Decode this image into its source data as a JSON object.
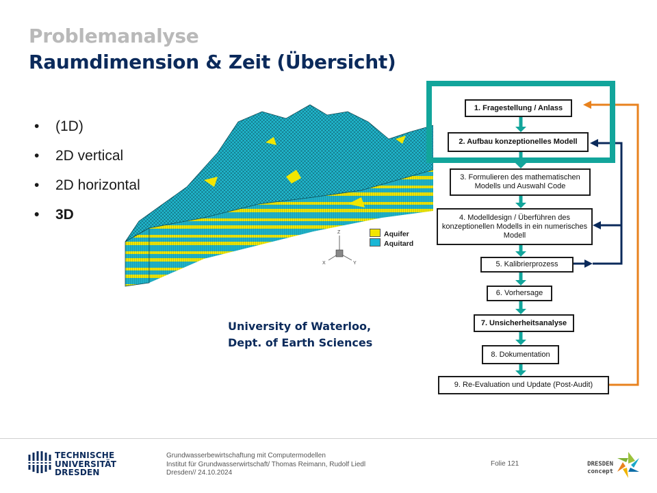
{
  "slide": {
    "section_title": "Problemanalyse",
    "title": "Raumdimension & Zeit (Übersicht)"
  },
  "bullets": [
    {
      "text": "(1D)",
      "bold": false
    },
    {
      "text": "2D vertical",
      "bold": false
    },
    {
      "text": "2D horizontal",
      "bold": false
    },
    {
      "text": "3D",
      "bold": true
    }
  ],
  "model_figure": {
    "legend": [
      {
        "label": "Aquifer",
        "color": "#f2e600"
      },
      {
        "label": "Aquitard",
        "color": "#19b7d6"
      }
    ],
    "axes": {
      "z": "Z",
      "x": "X",
      "y": "Y"
    },
    "credit_line1": "University of Waterloo,",
    "credit_line2": "Dept. of Earth Sciences"
  },
  "flowchart": {
    "steps": [
      {
        "text": "1. Fragestellung / Anlass",
        "bold": true
      },
      {
        "text": "2. Aufbau konzeptionelles Modell",
        "bold": true
      },
      {
        "text": "3. Formulieren des mathematischen Modells und Auswahl Code",
        "bold": false
      },
      {
        "text": "4. Modelldesign / Überführen des konzeptionellen Modells in ein numerisches Modell",
        "bold": false
      },
      {
        "text": "5. Kalibrierprozess",
        "bold": false
      },
      {
        "text": "6. Vorhersage",
        "bold": false
      },
      {
        "text": "7. Unsicherheitsanalyse",
        "bold": true
      },
      {
        "text": "8. Dokumentation",
        "bold": false
      },
      {
        "text": "9. Re-Evaluation und Update (Post-Audit)",
        "bold": false
      }
    ],
    "colors": {
      "arrow": "#12a59b",
      "loop_orange": "#e8821e",
      "loop_navy": "#0b2a5b",
      "highlight": "#12a59b"
    }
  },
  "footer": {
    "university_line1": "TECHNISCHE",
    "university_line2": "UNIVERSITÄT",
    "university_line3": "DRESDEN",
    "course": "Grundwasserbewirtschaftung mit Computermodellen",
    "institute": "Institut für Grundwasserwirtschaft/ Thomas Reimann, Rudolf Liedl",
    "place_date": "Dresden// 24.10.2024",
    "slide_number": "Folie 121",
    "partner_line1": "DRESDEN",
    "partner_line2": "concept"
  }
}
